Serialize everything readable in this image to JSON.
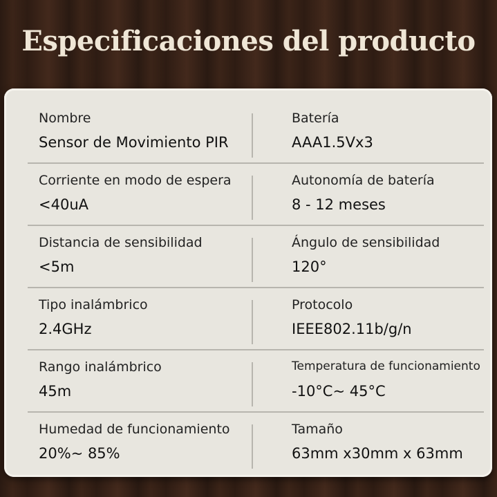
{
  "title": "Especificaciones del producto",
  "rows": [
    {
      "left": {
        "label": "Nombre",
        "value": "Sensor de Movimiento PIR"
      },
      "right": {
        "label": "Batería",
        "value": "AAA1.5Vx3"
      }
    },
    {
      "left": {
        "label": "Corriente en modo de espera",
        "value": "<40uA"
      },
      "right": {
        "label": "Autonomía de batería",
        "value": "8 - 12 meses"
      }
    },
    {
      "left": {
        "label": "Distancia de sensibilidad",
        "value": "<5m"
      },
      "right": {
        "label": "Ángulo de sensibilidad",
        "value": "120°"
      }
    },
    {
      "left": {
        "label": "Tipo inalámbrico",
        "value": "2.4GHz"
      },
      "right": {
        "label": "Protocolo",
        "value": "IEEE802.11b/g/n"
      }
    },
    {
      "left": {
        "label": "Rango inalámbrico",
        "value": "45m"
      },
      "right": {
        "label": "Temperatura de funcionamiento",
        "value": "-10°C~ 45°C"
      }
    },
    {
      "left": {
        "label": "Humedad de funcionamiento",
        "value": "20%~ 85%"
      },
      "right": {
        "label": "Tamaño",
        "value": "63mm x30mm x 63mm"
      }
    }
  ]
}
